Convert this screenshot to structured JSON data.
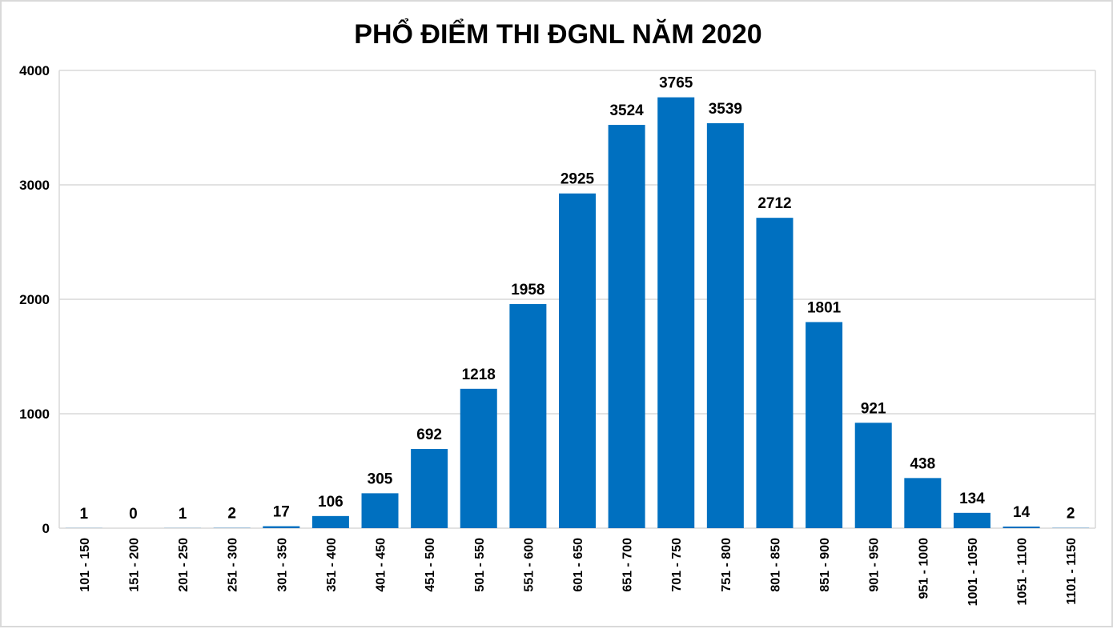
{
  "chart_data": {
    "type": "bar",
    "title": "PHỔ ĐIỂM THI ĐGNL NĂM 2020",
    "xlabel": "",
    "ylabel": "",
    "categories": [
      "101 - 150",
      "151 - 200",
      "201 - 250",
      "251 - 300",
      "301 - 350",
      "351 - 400",
      "401 - 450",
      "451 - 500",
      "501 - 550",
      "551 - 600",
      "601 - 650",
      "651 - 700",
      "701 - 750",
      "751 - 800",
      "801 - 850",
      "851 - 900",
      "901 - 950",
      "951 - 1000",
      "1001 - 1050",
      "1051 - 1100",
      "1101 - 1150"
    ],
    "values": [
      1,
      0,
      1,
      2,
      17,
      106,
      305,
      692,
      1218,
      1958,
      2925,
      3524,
      3765,
      3539,
      2712,
      1801,
      921,
      438,
      134,
      14,
      2
    ],
    "ylim": [
      0,
      4000
    ],
    "yticks": [
      0,
      1000,
      2000,
      3000,
      4000
    ],
    "grid": true,
    "legend": "none",
    "data_labels": true,
    "bar_color": "#0070C0"
  }
}
